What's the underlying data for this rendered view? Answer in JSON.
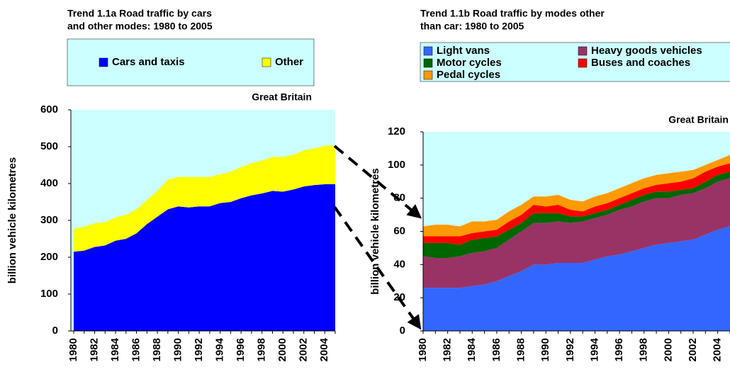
{
  "chart_data": [
    {
      "type": "area",
      "stacked": true,
      "title_lines": [
        "Trend 1.1a Road traffic by cars",
        "and other modes: 1980 to 2005"
      ],
      "annotation": "Great Britain",
      "y_label": "billion vehicle kilometres",
      "categories": [
        "1980",
        null,
        "1982",
        null,
        "1984",
        null,
        "1986",
        null,
        "1988",
        null,
        "1990",
        null,
        "1992",
        null,
        "1994",
        null,
        "1996",
        null,
        "1998",
        null,
        "2000",
        null,
        "2002",
        null,
        "2004",
        null
      ],
      "series": [
        {
          "name": "Cars and taxis",
          "color": "#0000ff",
          "values": [
            215,
            218,
            228,
            232,
            245,
            250,
            265,
            290,
            310,
            330,
            338,
            335,
            338,
            338,
            347,
            350,
            360,
            368,
            373,
            380,
            378,
            384,
            392,
            396,
            398,
            398
          ]
        },
        {
          "name": "Other",
          "color": "#ffff00",
          "values": [
            62,
            65,
            64,
            63,
            63,
            65,
            65,
            65,
            70,
            80,
            80,
            83,
            80,
            80,
            78,
            82,
            85,
            87,
            89,
            92,
            94,
            94,
            98,
            99,
            105,
            105
          ]
        }
      ],
      "ylim": [
        0,
        600
      ],
      "yticks": [
        0,
        100,
        200,
        300,
        400,
        500,
        600
      ],
      "grid": false
    },
    {
      "type": "area",
      "stacked": true,
      "title_lines": [
        "Trend 1.1b  Road traffic by modes other",
        "than car: 1980 to 2005"
      ],
      "annotation": "Great Britain",
      "y_label": "billion vehicle kilometres",
      "categories": [
        "1980",
        null,
        "1982",
        null,
        "1984",
        null,
        "1986",
        null,
        "1988",
        null,
        "1990",
        null,
        "1992",
        null,
        "1994",
        null,
        "1996",
        null,
        "1998",
        null,
        "2000",
        null,
        "2002",
        null,
        "2004",
        null
      ],
      "series": [
        {
          "name": "Light vans",
          "color": "#3366ff",
          "values": [
            26,
            26,
            26,
            26,
            27,
            28,
            30,
            33,
            36,
            40,
            40,
            41,
            41,
            41,
            43,
            45,
            46,
            48,
            50,
            52,
            53,
            54,
            55,
            58,
            61,
            63
          ]
        },
        {
          "name": "Heavy goods vehicles",
          "color": "#993366",
          "values": [
            19,
            18,
            18,
            19,
            20,
            20,
            20,
            22,
            24,
            25,
            25,
            25,
            24,
            25,
            25,
            25,
            27,
            27,
            28,
            28,
            27,
            28,
            28,
            28,
            29,
            29
          ]
        },
        {
          "name": "Motor cycles",
          "color": "#006600",
          "values": [
            8,
            9,
            9,
            7,
            8,
            8,
            7,
            6,
            5,
            6,
            6,
            5,
            4,
            3,
            3,
            3,
            3,
            4,
            4,
            4,
            4,
            3,
            3,
            4,
            4,
            4
          ]
        },
        {
          "name": "Buses and coaches",
          "color": "#ff0000",
          "values": [
            4,
            4,
            4,
            5,
            4,
            4,
            4,
            5,
            5,
            5,
            4,
            5,
            4,
            3,
            4,
            4,
            4,
            4,
            4,
            4,
            5,
            5,
            6,
            6,
            5,
            5
          ]
        },
        {
          "name": "Pedal cycles",
          "color": "#ff9900",
          "values": [
            6,
            7,
            7,
            6,
            7,
            6,
            6,
            6,
            6,
            5,
            6,
            6,
            6,
            6,
            6,
            6,
            6,
            6,
            6,
            6,
            6,
            6,
            5,
            4,
            4,
            5
          ]
        }
      ],
      "ylim": [
        0,
        120
      ],
      "yticks": [
        0,
        20,
        40,
        60,
        80,
        100,
        120
      ],
      "grid": false
    }
  ]
}
